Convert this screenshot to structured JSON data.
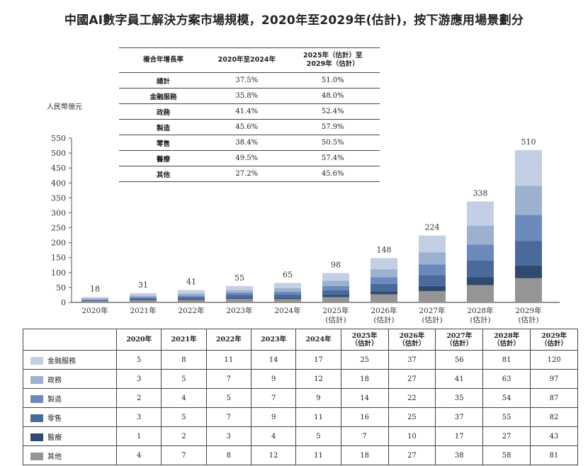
{
  "title": "中國AI數字員工解決方案市場規模，2020年至2029年(估計)，按下游應用場景劃分",
  "unit_label": "人民幣億元",
  "cagr_table": {
    "headers": [
      "複合年增長率",
      "2020年至2024年",
      "2025年（估計）至\n2029年（估計）"
    ],
    "header_line1": "2025年（估計）至",
    "header_line2": "2029年（估計）",
    "rows": [
      {
        "label": "總計",
        "p1": "37.5%",
        "p2": "51.0%"
      },
      {
        "label": "金融服務",
        "p1": "35.8%",
        "p2": "48.0%"
      },
      {
        "label": "政務",
        "p1": "41.4%",
        "p2": "52.4%"
      },
      {
        "label": "製造",
        "p1": "45.6%",
        "p2": "57.9%"
      },
      {
        "label": "零售",
        "p1": "38.4%",
        "p2": "50.5%"
      },
      {
        "label": "醫療",
        "p1": "49.5%",
        "p2": "57.4%"
      },
      {
        "label": "其他",
        "p1": "27.2%",
        "p2": "45.6%"
      }
    ]
  },
  "chart_data": {
    "type": "bar",
    "stacked": true,
    "title": "中國AI數字員工解決方案市場規模，2020年至2029年(估計)，按下游應用場景劃分",
    "ylabel": "人民幣億元",
    "xlabel": "",
    "ylim": [
      0,
      550
    ],
    "yticks": [
      0,
      50,
      100,
      150,
      200,
      250,
      300,
      350,
      400,
      450,
      500,
      550
    ],
    "grid": false,
    "legend_position": "table-below",
    "categories": [
      "2020年",
      "2021年",
      "2022年",
      "2023年",
      "2024年",
      "2025年(估計)",
      "2026年(估計)",
      "2027年(估計)",
      "2028年(估計)",
      "2029年(估計)"
    ],
    "category_lines": [
      [
        "2020年"
      ],
      [
        "2021年"
      ],
      [
        "2022年"
      ],
      [
        "2023年"
      ],
      [
        "2024年"
      ],
      [
        "2025年",
        "(估計)"
      ],
      [
        "2026年",
        "(估計)"
      ],
      [
        "2027年",
        "(估計)"
      ],
      [
        "2028年",
        "(估計)"
      ],
      [
        "2029年",
        "(估計)"
      ]
    ],
    "totals": [
      18,
      31,
      41,
      55,
      65,
      98,
      148,
      224,
      338,
      510
    ],
    "series": [
      {
        "name": "其他",
        "color": "#959595",
        "values": [
          4,
          7,
          8,
          12,
          11,
          18,
          27,
          38,
          58,
          81
        ]
      },
      {
        "name": "醫療",
        "color": "#2f4a6e",
        "values": [
          1,
          2,
          3,
          4,
          5,
          7,
          10,
          17,
          27,
          43
        ]
      },
      {
        "name": "零售",
        "color": "#4a6a9c",
        "values": [
          3,
          5,
          7,
          9,
          11,
          16,
          25,
          37,
          55,
          82
        ]
      },
      {
        "name": "製造",
        "color": "#6a8abb",
        "values": [
          2,
          4,
          5,
          7,
          9,
          14,
          22,
          35,
          54,
          87
        ]
      },
      {
        "name": "政務",
        "color": "#9cb0d0",
        "values": [
          3,
          5,
          7,
          9,
          12,
          18,
          27,
          41,
          63,
          97
        ]
      },
      {
        "name": "金融服務",
        "color": "#c3cfe4",
        "values": [
          5,
          8,
          11,
          14,
          17,
          25,
          37,
          56,
          81,
          120
        ]
      }
    ]
  },
  "data_table": {
    "headers": [
      [
        "2020年"
      ],
      [
        "2021年"
      ],
      [
        "2022年"
      ],
      [
        "2023年"
      ],
      [
        "2024年"
      ],
      [
        "2025年",
        "（估計）"
      ],
      [
        "2026年",
        "（估計）"
      ],
      [
        "2027年",
        "（估計）"
      ],
      [
        "2028年",
        "（估計）"
      ],
      [
        "2029年",
        "（估計）"
      ]
    ],
    "rows": [
      {
        "name": "金融服務",
        "color": "#c3cfe4",
        "values": [
          5,
          8,
          11,
          14,
          17,
          25,
          37,
          56,
          81,
          120
        ]
      },
      {
        "name": "政務",
        "color": "#9cb0d0",
        "values": [
          3,
          5,
          7,
          9,
          12,
          18,
          27,
          41,
          63,
          97
        ]
      },
      {
        "name": "製造",
        "color": "#6a8abb",
        "values": [
          2,
          4,
          5,
          7,
          9,
          14,
          22,
          35,
          54,
          87
        ]
      },
      {
        "name": "零售",
        "color": "#4a6a9c",
        "values": [
          3,
          5,
          7,
          9,
          11,
          16,
          25,
          37,
          55,
          82
        ]
      },
      {
        "name": "醫療",
        "color": "#2f4a6e",
        "values": [
          1,
          2,
          3,
          4,
          5,
          7,
          10,
          17,
          27,
          43
        ]
      },
      {
        "name": "其他",
        "color": "#959595",
        "values": [
          4,
          7,
          8,
          12,
          11,
          18,
          27,
          38,
          58,
          81
        ]
      }
    ]
  }
}
